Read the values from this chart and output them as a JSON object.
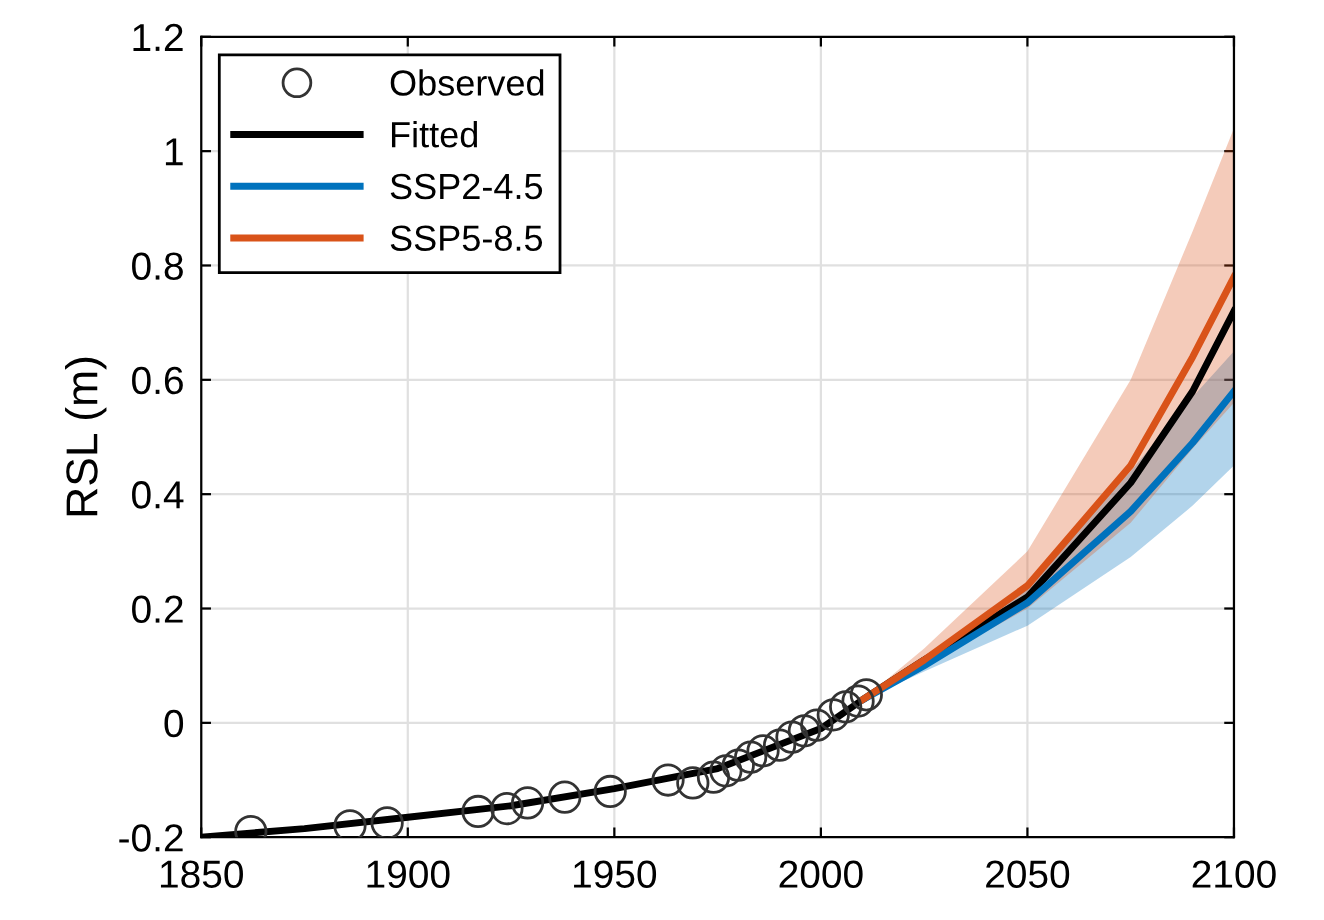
{
  "chart_data": {
    "type": "line",
    "ylabel": "RSL (m)",
    "xlim": [
      1850,
      2100
    ],
    "ylim": [
      -0.2,
      1.2
    ],
    "xticks": [
      1850,
      1900,
      1950,
      2000,
      2050,
      2100
    ],
    "yticks": [
      {
        "value": -0.2,
        "label": "-0.2"
      },
      0,
      0.2,
      0.4,
      0.6,
      0.8,
      1,
      1.2
    ],
    "grid": true,
    "legend": "top left",
    "series": [
      {
        "name": "Observed",
        "type": "scatter",
        "marker": "circle",
        "color": "#333333",
        "x": [
          1862,
          1886,
          1895,
          1917,
          1924,
          1929,
          1938,
          1949,
          1963,
          1969,
          1974,
          1977,
          1980,
          1983,
          1986,
          1990,
          1993,
          1996,
          1999,
          2003,
          2006,
          2009,
          2011
        ],
        "values": [
          -0.19,
          -0.18,
          -0.175,
          -0.155,
          -0.15,
          -0.14,
          -0.13,
          -0.12,
          -0.1,
          -0.105,
          -0.095,
          -0.084,
          -0.074,
          -0.06,
          -0.049,
          -0.039,
          -0.025,
          -0.014,
          -0.004,
          0.014,
          0.028,
          0.038,
          0.049
        ]
      },
      {
        "name": "Fitted",
        "color": "#000000",
        "x": [
          1850,
          1875,
          1900,
          1925,
          1950,
          1975,
          2000,
          2010,
          2025,
          2050,
          2075,
          2090,
          2100
        ],
        "values": [
          -0.2,
          -0.185,
          -0.165,
          -0.145,
          -0.115,
          -0.08,
          -0.01,
          0.04,
          0.11,
          0.22,
          0.42,
          0.58,
          0.72
        ]
      },
      {
        "name": "SSP2-4.5",
        "color": "#0072bd",
        "x": [
          2010,
          2025,
          2050,
          2075,
          2090,
          2100
        ],
        "values": [
          0.04,
          0.1,
          0.21,
          0.37,
          0.49,
          0.58
        ],
        "lower": [
          0.04,
          0.09,
          0.17,
          0.29,
          0.38,
          0.45
        ],
        "upper": [
          0.04,
          0.11,
          0.24,
          0.44,
          0.57,
          0.65
        ]
      },
      {
        "name": "SSP5-8.5",
        "color": "#d95319",
        "x": [
          2010,
          2025,
          2050,
          2075,
          2090,
          2100
        ],
        "values": [
          0.04,
          0.11,
          0.24,
          0.45,
          0.64,
          0.78
        ],
        "lower": [
          0.04,
          0.1,
          0.2,
          0.35,
          0.48,
          0.56
        ],
        "upper": [
          0.04,
          0.13,
          0.3,
          0.6,
          0.86,
          1.04
        ]
      }
    ]
  }
}
